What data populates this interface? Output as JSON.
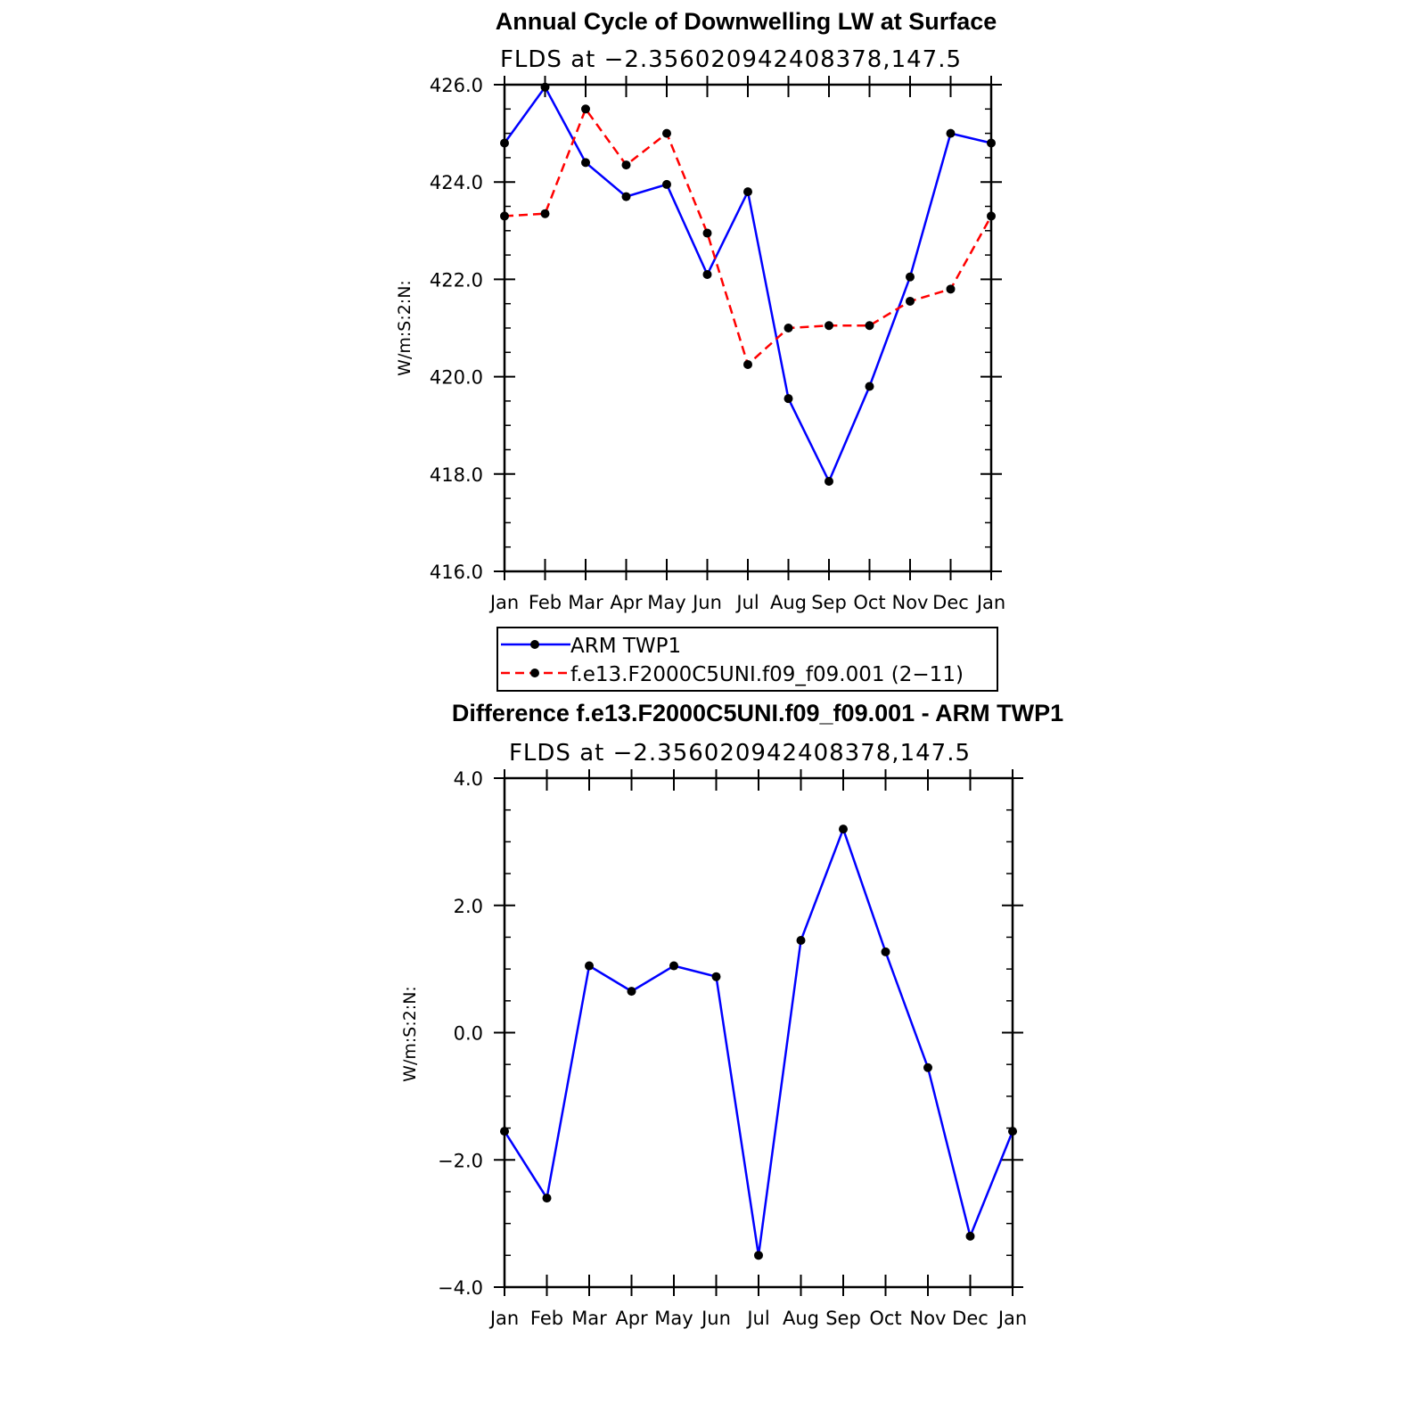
{
  "chart_data": [
    {
      "type": "line",
      "title": "Annual Cycle of Downwelling LW at Surface",
      "subtitle": "FLDS at −2.356020942408378,147.5",
      "ylabel": "W/m:S:2:N:",
      "xlabel": "",
      "categories": [
        "Jan",
        "Feb",
        "Mar",
        "Apr",
        "May",
        "Jun",
        "Jul",
        "Aug",
        "Sep",
        "Oct",
        "Nov",
        "Dec",
        "Jan"
      ],
      "ylim": [
        416.0,
        426.0
      ],
      "yticks": [
        "416.0",
        "418.0",
        "420.0",
        "422.0",
        "424.0",
        "426.0"
      ],
      "ytick_values": [
        416,
        418,
        420,
        422,
        424,
        426
      ],
      "grid": false,
      "legend_position": "bottom",
      "series": [
        {
          "name": "ARM TWP1",
          "color": "#0000ff",
          "dash": "solid",
          "values": [
            424.8,
            425.95,
            424.4,
            423.7,
            423.95,
            422.1,
            423.8,
            419.55,
            417.85,
            419.8,
            422.05,
            425.0,
            424.8
          ]
        },
        {
          "name": "f.e13.F2000C5UNI.f09_f09.001 (2−11)",
          "color": "#ff0000",
          "dash": "dashed",
          "values": [
            423.3,
            423.35,
            425.5,
            424.35,
            425.0,
            422.95,
            420.25,
            421.0,
            421.05,
            421.05,
            421.55,
            421.8,
            423.3
          ]
        }
      ]
    },
    {
      "type": "line",
      "title": "Difference f.e13.F2000C5UNI.f09_f09.001 - ARM TWP1",
      "subtitle": "FLDS at −2.356020942408378,147.5",
      "ylabel": "W/m:S:2:N:",
      "xlabel": "",
      "categories": [
        "Jan",
        "Feb",
        "Mar",
        "Apr",
        "May",
        "Jun",
        "Jul",
        "Aug",
        "Sep",
        "Oct",
        "Nov",
        "Dec",
        "Jan"
      ],
      "ylim": [
        -4.0,
        4.0
      ],
      "yticks": [
        "−4.0",
        "−2.0",
        "0.0",
        "2.0",
        "4.0"
      ],
      "ytick_values": [
        -4,
        -2,
        0,
        2,
        4
      ],
      "grid": false,
      "series": [
        {
          "color": "#0000ff",
          "dash": "solid",
          "values": [
            -1.55,
            -2.6,
            1.05,
            0.65,
            1.05,
            0.88,
            -3.5,
            1.45,
            3.2,
            1.27,
            -0.55,
            -3.2,
            -1.55
          ]
        }
      ]
    }
  ]
}
